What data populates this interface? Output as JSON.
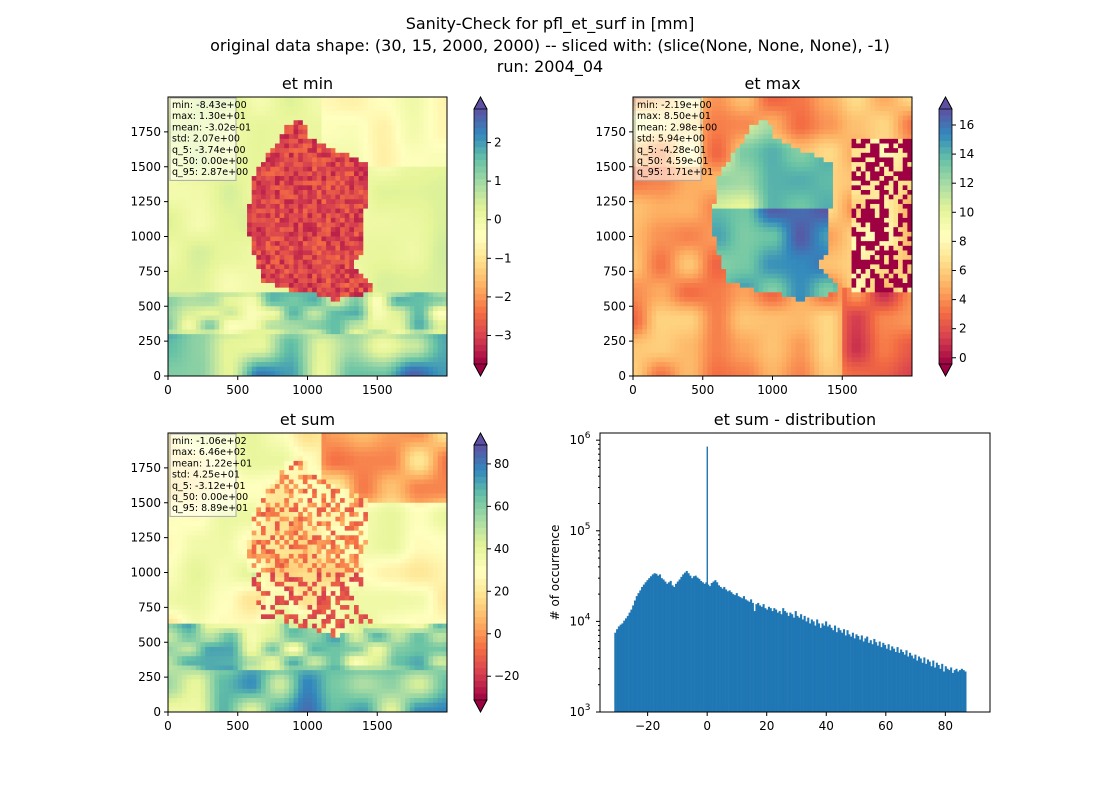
{
  "suptitle": [
    "Sanity-Check for pfl_et_surf in [mm]",
    "original data shape: (30, 15, 2000, 2000) -- sliced with: (slice(None, None, None), -1)",
    "run: 2004_04"
  ],
  "chart_data": [
    {
      "type": "heatmap",
      "title": "et min",
      "x_ticks": [
        0,
        500,
        1000,
        1500
      ],
      "y_ticks": [
        0,
        250,
        500,
        750,
        1000,
        1250,
        1500,
        1750
      ],
      "xlim": [
        0,
        2000
      ],
      "ylim": [
        0,
        2000
      ],
      "colormap": "Spectral",
      "colorbar": {
        "vmin": -3.74,
        "vmax": 2.87,
        "ticks": [
          -3,
          -2,
          -1,
          0,
          1,
          2
        ],
        "extend": "both"
      },
      "stats": [
        "min: -8.43e+00",
        "max: 1.30e+01",
        "mean: -3.02e-01",
        "std: 2.07e+00",
        "q_5: -3.74e+00",
        "q_50: 0.00e+00",
        "q_95: 2.87e+00"
      ]
    },
    {
      "type": "heatmap",
      "title": "et max",
      "x_ticks": [
        0,
        500,
        1000,
        1500
      ],
      "y_ticks": [
        0,
        250,
        500,
        750,
        1000,
        1250,
        1500,
        1750
      ],
      "xlim": [
        0,
        2000
      ],
      "ylim": [
        0,
        2000
      ],
      "colormap": "Spectral",
      "colorbar": {
        "vmin": -0.428,
        "vmax": 17.1,
        "ticks": [
          0,
          2,
          4,
          6,
          8,
          10,
          12,
          14,
          16
        ],
        "extend": "both"
      },
      "stats": [
        "min: -2.19e+00",
        "max: 8.50e+01",
        "mean: 2.98e+00",
        "std: 5.94e+00",
        "q_5: -4.28e-01",
        "q_50: 4.59e-01",
        "q_95: 1.71e+01"
      ]
    },
    {
      "type": "heatmap",
      "title": "et sum",
      "x_ticks": [
        0,
        500,
        1000,
        1500
      ],
      "y_ticks": [
        0,
        250,
        500,
        750,
        1000,
        1250,
        1500,
        1750
      ],
      "xlim": [
        0,
        2000
      ],
      "ylim": [
        0,
        2000
      ],
      "colormap": "Spectral",
      "colorbar": {
        "vmin": -31.2,
        "vmax": 88.9,
        "ticks": [
          -20,
          0,
          20,
          40,
          60,
          80
        ],
        "extend": "both"
      },
      "stats": [
        "min: -1.06e+02",
        "max: 6.46e+02",
        "mean: 1.22e+01",
        "std: 4.25e+01",
        "q_5: -3.12e+01",
        "q_50: 0.00e+00",
        "q_95: 8.89e+01"
      ]
    },
    {
      "type": "bar",
      "title": "et sum - distribution",
      "xlabel": "",
      "ylabel": "# of occurrence",
      "y_scale": "log",
      "xlim": [
        -36,
        95
      ],
      "ylim": [
        1000,
        1200000
      ],
      "x_ticks": [
        -20,
        0,
        20,
        40,
        60,
        80
      ],
      "y_ticks": [
        {
          "value": 1000,
          "base": "10",
          "exp": "3"
        },
        {
          "value": 10000,
          "base": "10",
          "exp": "4"
        },
        {
          "value": 100000,
          "base": "10",
          "exp": "5"
        },
        {
          "value": 1000000,
          "base": "10",
          "exp": "6"
        }
      ],
      "color": "#1f77b4",
      "bin_start": -31.2,
      "bin_width": 0.6,
      "spike": {
        "x": 0.0,
        "count": 850000
      },
      "series": [
        {
          "values": [
            7500,
            8200,
            8800,
            9200,
            9500,
            10200,
            10800,
            11500,
            12500,
            13500,
            15000,
            17000,
            19000,
            20500,
            22000,
            24000,
            25500,
            27000,
            28500,
            30000,
            31500,
            33000,
            34000,
            33500,
            32000,
            33000,
            30000,
            29000,
            27500,
            26000,
            27000,
            28000,
            25000,
            24000,
            26000,
            27500,
            29000,
            31000,
            33000,
            34500,
            36000,
            34000,
            32000,
            30000,
            31500,
            32000,
            30500,
            29500,
            28000,
            27000,
            26000,
            27000,
            25500,
            24500,
            26500,
            27500,
            28500,
            27000,
            25000,
            24000,
            23000,
            24000,
            22500,
            21500,
            22000,
            21000,
            20000,
            19500,
            20500,
            19000,
            18500,
            18000,
            19000,
            17500,
            17000,
            16500,
            17500,
            16000,
            13000,
            15500,
            16000,
            15000,
            14500,
            15500,
            14000,
            13500,
            14500,
            14000,
            13000,
            14000,
            13500,
            12500,
            13000,
            12000,
            14000,
            13000,
            12500,
            11500,
            12500,
            12000,
            11000,
            13000,
            11500,
            11000,
            12000,
            10500,
            11500,
            10000,
            11000,
            9500,
            10500,
            10000,
            9000,
            10500,
            9500,
            8500,
            9500,
            9000,
            10000,
            8800,
            9200,
            8500,
            8000,
            9000,
            7600,
            8500,
            8000,
            7500,
            8200,
            7000,
            8000,
            7200,
            6800,
            7500,
            6500,
            7200,
            6900,
            6300,
            7000,
            6000,
            6500,
            6800,
            5800,
            6200,
            5600,
            6400,
            5900,
            5400,
            6000,
            5200,
            5800,
            5500,
            5000,
            5600,
            4800,
            5300,
            5000,
            4600,
            5200,
            4500,
            4900,
            4600,
            4300,
            4800,
            4100,
            4500,
            4200,
            3900,
            4300,
            3700,
            4100,
            3900,
            3500,
            4000,
            3400,
            3800,
            3600,
            3200,
            3700,
            3100,
            3500,
            3300,
            3000,
            3400,
            2800,
            3200,
            3000,
            2900,
            3100,
            2700,
            2900,
            3000,
            2800,
            2900,
            3000,
            2900,
            2800
          ]
        }
      ]
    }
  ]
}
